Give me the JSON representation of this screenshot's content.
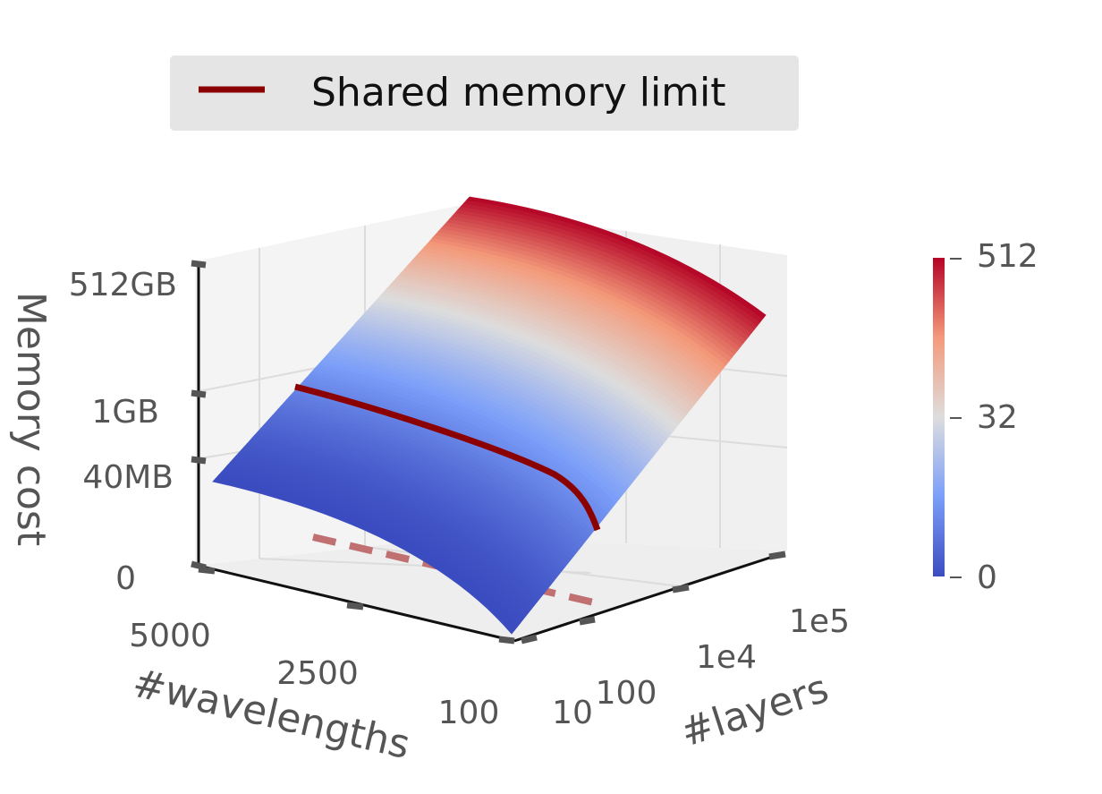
{
  "chart_data": {
    "type": "surface3d",
    "legend": {
      "entries": [
        "Shared memory limit"
      ],
      "placement": "top"
    },
    "z_axis": {
      "label": "Memory cost",
      "ticks": [
        "0",
        "40MB",
        "1GB",
        "512GB"
      ]
    },
    "x_axis": {
      "label": "#wavelengths",
      "ticks": [
        "5000",
        "2500",
        "100"
      ],
      "range": [
        100,
        5000
      ]
    },
    "y_axis": {
      "label": "#layers",
      "ticks": [
        "10",
        "100",
        "1e4",
        "1e5"
      ],
      "scale": "log",
      "range": [
        10,
        100000
      ]
    },
    "colorbar": {
      "ticks": [
        "0",
        "32",
        "512"
      ],
      "colormap": "coolwarm"
    },
    "series": [
      {
        "name": "Shared memory limit",
        "kind": "line",
        "color": "#8b0000",
        "width": "solid"
      }
    ],
    "projection_style": "dashed",
    "grid": true
  },
  "colors": {
    "limit_line": "#8b0000",
    "projection_line": "#c07070",
    "legend_bg": "#e5e5e5",
    "axis_text": "#555555",
    "pane": "#f2f2f2",
    "grid": "#dedede"
  }
}
